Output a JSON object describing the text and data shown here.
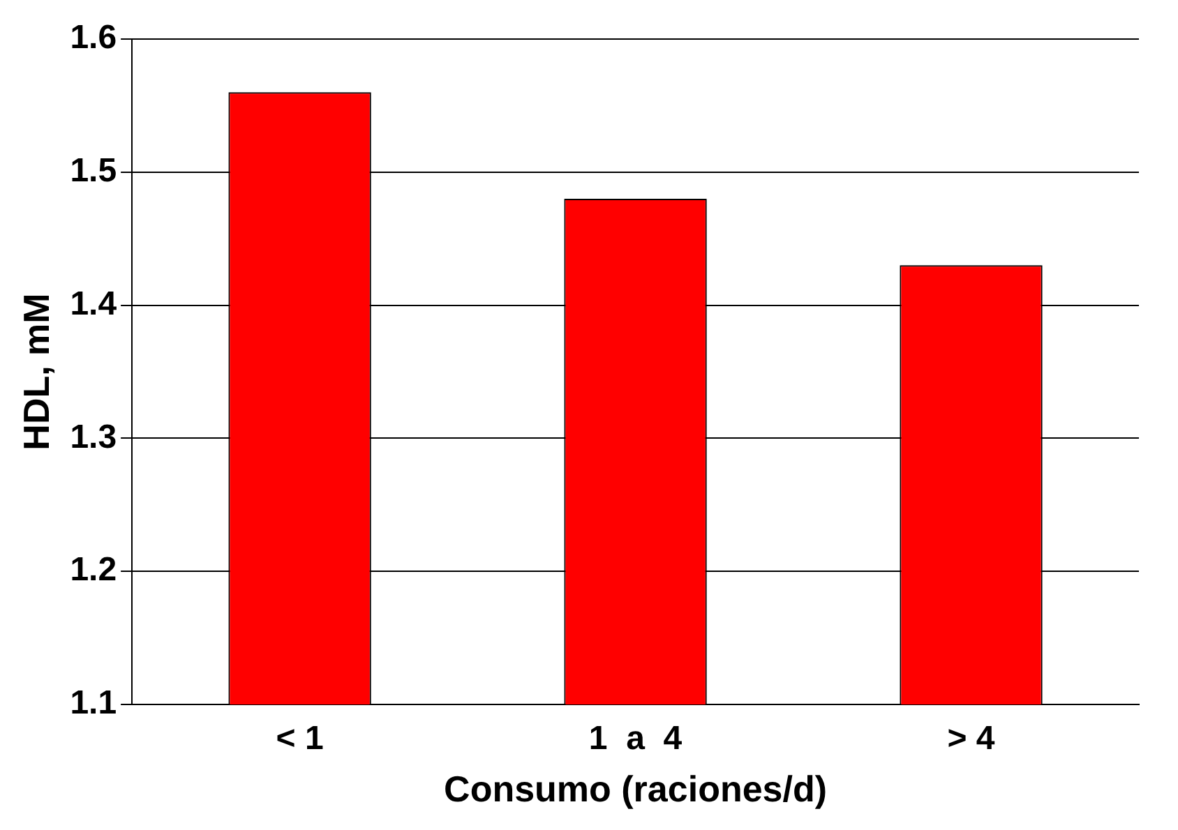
{
  "chart_data": {
    "type": "bar",
    "xlabel": "Consumo (raciones/d)",
    "ylabel": "HDL, mM",
    "categories": [
      "< 1",
      "1  a  4",
      "> 4"
    ],
    "values": [
      1.56,
      1.48,
      1.43
    ],
    "color": "#ff0000",
    "ylim": [
      1.1,
      1.6
    ],
    "yticks": [
      1.1,
      1.2,
      1.3,
      1.4,
      1.5,
      1.6
    ],
    "grid": "y",
    "legend": false
  }
}
